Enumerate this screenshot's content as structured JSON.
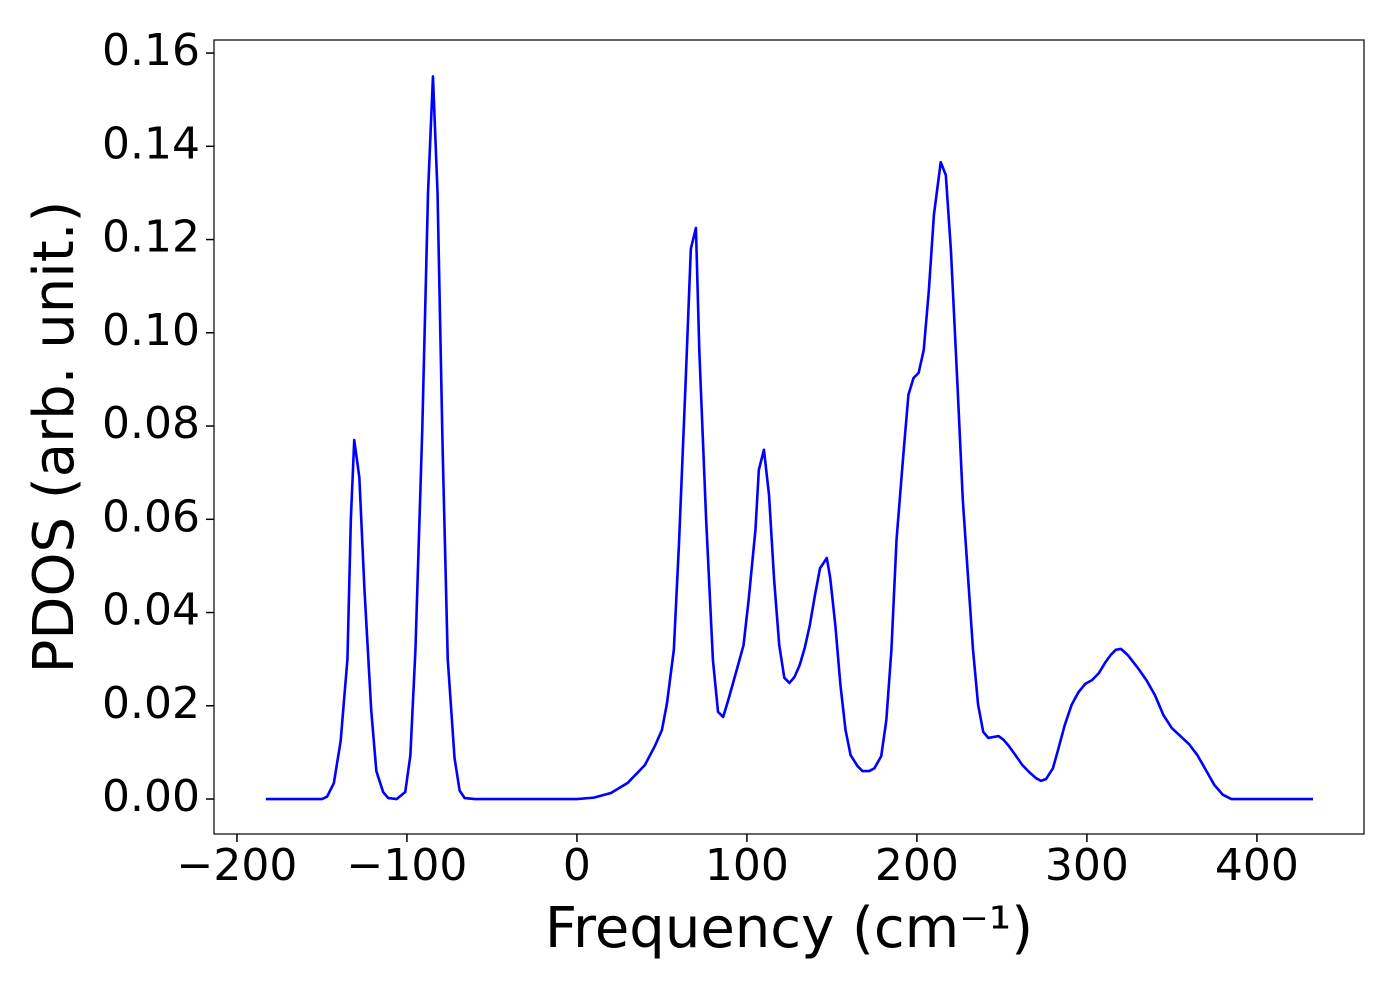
{
  "chart_data": {
    "type": "line",
    "xlabel": "Frequency (cm⁻¹)",
    "ylabel": "PDOS (arb. unit.)",
    "xlim": [
      -213.5,
      463
    ],
    "ylim": [
      -0.0075,
      0.1628
    ],
    "xticks": [
      {
        "value": -200,
        "label": "−200"
      },
      {
        "value": -100,
        "label": "−100"
      },
      0,
      100,
      200,
      300,
      400
    ],
    "yticks": [
      {
        "value": 0,
        "label": "0.00"
      },
      {
        "value": 0.02,
        "label": "0.02"
      },
      {
        "value": 0.04,
        "label": "0.04"
      },
      {
        "value": 0.06,
        "label": "0.06"
      },
      {
        "value": 0.08,
        "label": "0.08"
      },
      {
        "value": 0.1,
        "label": "0.10"
      },
      {
        "value": 0.12,
        "label": "0.12"
      },
      {
        "value": 0.14,
        "label": "0.14"
      },
      {
        "value": 0.16,
        "label": "0.16"
      }
    ],
    "series": [
      {
        "color": "#0000ff",
        "x": [
          -183,
          -150,
          -147,
          -143,
          -139,
          -135,
          -133,
          -131,
          -128,
          -125,
          -121,
          -118,
          -114,
          -111,
          -106,
          -101,
          -98,
          -95,
          -91,
          -87.6,
          -84.7,
          -82,
          -79,
          -76,
          -72,
          -69,
          -66,
          -60,
          0,
          10,
          20,
          30,
          40,
          46,
          50,
          53,
          57,
          60,
          64,
          67,
          70,
          72,
          76,
          80,
          83,
          86,
          89,
          94,
          98,
          101,
          105,
          107,
          110,
          113,
          116,
          119,
          122,
          125,
          128,
          131,
          134,
          137,
          140,
          143,
          147,
          149,
          152,
          155,
          158,
          161,
          165,
          168,
          172,
          175,
          179,
          182,
          185,
          188,
          192,
          195,
          198,
          201,
          204,
          207,
          210,
          214,
          217,
          220,
          224,
          227,
          230,
          233,
          236,
          239,
          242,
          245,
          248,
          251,
          254,
          258,
          262,
          266,
          270,
          273,
          276,
          280,
          283,
          287,
          291,
          295,
          299,
          303,
          307,
          311,
          314,
          317,
          320,
          324,
          330,
          335,
          340,
          345,
          350,
          355,
          360,
          365,
          370,
          375,
          380,
          385,
          433
        ],
        "values": [
          0,
          0,
          0.0005,
          0.0034,
          0.0124,
          0.03,
          0.06,
          0.077,
          0.069,
          0.045,
          0.019,
          0.006,
          0.0015,
          0.0002,
          0,
          0.0015,
          0.0093,
          0.032,
          0.079,
          0.13,
          0.155,
          0.13,
          0.075,
          0.03,
          0.0088,
          0.0018,
          0.0002,
          0,
          0,
          0.0003,
          0.0013,
          0.0035,
          0.0073,
          0.0115,
          0.0148,
          0.0206,
          0.032,
          0.0545,
          0.09,
          0.118,
          0.1225,
          0.096,
          0.06,
          0.0298,
          0.0187,
          0.0176,
          0.0212,
          0.0277,
          0.033,
          0.0427,
          0.0577,
          0.0706,
          0.0749,
          0.0652,
          0.047,
          0.033,
          0.026,
          0.0249,
          0.0262,
          0.0287,
          0.0324,
          0.0373,
          0.0437,
          0.0495,
          0.0517,
          0.0474,
          0.0373,
          0.0245,
          0.0148,
          0.0094,
          0.0071,
          0.006,
          0.006,
          0.0066,
          0.0092,
          0.0169,
          0.032,
          0.0556,
          0.0738,
          0.0867,
          0.0903,
          0.0914,
          0.0963,
          0.109,
          0.1253,
          0.1366,
          0.1338,
          0.1177,
          0.0877,
          0.0641,
          0.048,
          0.032,
          0.0202,
          0.0144,
          0.0131,
          0.0133,
          0.0135,
          0.0127,
          0.0114,
          0.0094,
          0.0073,
          0.0058,
          0.0045,
          0.0039,
          0.0043,
          0.0066,
          0.0105,
          0.0159,
          0.0202,
          0.0229,
          0.0247,
          0.0255,
          0.027,
          0.0294,
          0.0309,
          0.032,
          0.0322,
          0.0309,
          0.0281,
          0.0255,
          0.0223,
          0.018,
          0.0152,
          0.0135,
          0.0118,
          0.0094,
          0.0062,
          0.003,
          0.0009,
          0,
          0
        ]
      }
    ]
  }
}
